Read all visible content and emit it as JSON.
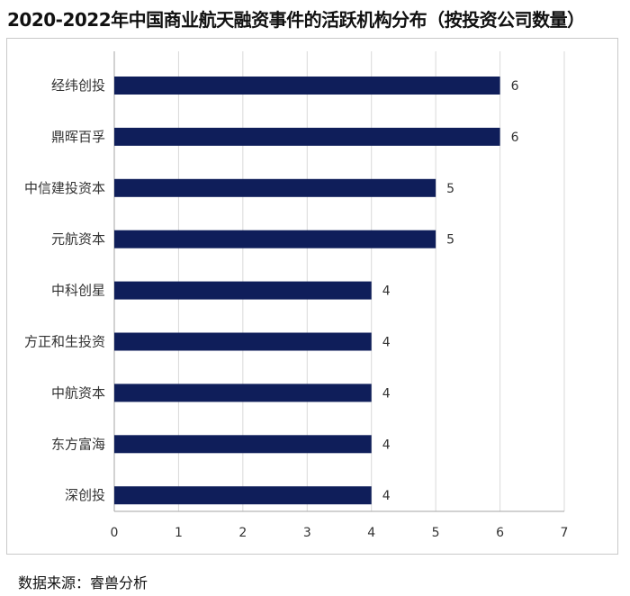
{
  "title": "2020-2022年中国商业航天融资事件的活跃机构分布（按投资公司数量）",
  "source": "数据来源：睿兽分析",
  "chart_data": {
    "type": "bar",
    "orientation": "horizontal",
    "title": "2020-2022年中国商业航天融资事件的活跃机构分布（按投资公司数量）",
    "categories": [
      "经纬创投",
      "鼎晖百孚",
      "中信建投资本",
      "元航资本",
      "中科创星",
      "方正和生投资",
      "中航资本",
      "东方富海",
      "深创投"
    ],
    "values": [
      6,
      6,
      5,
      5,
      4,
      4,
      4,
      4,
      4
    ],
    "xlim": [
      0,
      7
    ],
    "xticks": [
      0,
      1,
      2,
      3,
      4,
      5,
      6,
      7
    ],
    "xlabel": "",
    "ylabel": "",
    "grid": true,
    "data_labels": true,
    "bar_color": "#0f1e5a",
    "grid_color": "#d9d9d9",
    "axis_color": "#a6a6a6",
    "label_color": "#333333"
  }
}
